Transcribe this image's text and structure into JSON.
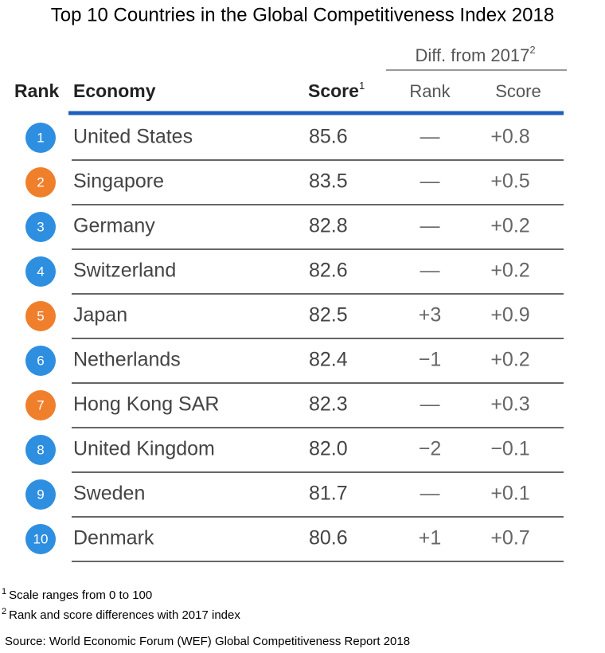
{
  "title": "Top 10 Countries in the Global Competitiveness Index 2018",
  "table": {
    "group_header": {
      "text": "Diff. from 2017",
      "note": "2"
    },
    "headers": [
      {
        "text": "Rank"
      },
      {
        "text": "Economy"
      },
      {
        "text": "Score",
        "note": "1"
      },
      {
        "text": "Rank"
      },
      {
        "text": "Score"
      }
    ],
    "rows": [
      {
        "rank": "1",
        "economy": "United States",
        "score": "85.6",
        "rank_diff": "—",
        "score_diff": "+0.8",
        "color": "#2e8fe0"
      },
      {
        "rank": "2",
        "economy": "Singapore",
        "score": "83.5",
        "rank_diff": "—",
        "score_diff": "+0.5",
        "color": "#f07f2c"
      },
      {
        "rank": "3",
        "economy": "Germany",
        "score": "82.8",
        "rank_diff": "—",
        "score_diff": "+0.2",
        "color": "#2e8fe0"
      },
      {
        "rank": "4",
        "economy": "Switzerland",
        "score": "82.6",
        "rank_diff": "—",
        "score_diff": "+0.2",
        "color": "#2e8fe0"
      },
      {
        "rank": "5",
        "economy": "Japan",
        "score": "82.5",
        "rank_diff": "+3",
        "score_diff": "+0.9",
        "color": "#f07f2c"
      },
      {
        "rank": "6",
        "economy": "Netherlands",
        "score": "82.4",
        "rank_diff": "−1",
        "score_diff": "+0.2",
        "color": "#2e8fe0"
      },
      {
        "rank": "7",
        "economy": "Hong Kong SAR",
        "score": "82.3",
        "rank_diff": "—",
        "score_diff": "+0.3",
        "color": "#f07f2c"
      },
      {
        "rank": "8",
        "economy": "United Kingdom",
        "score": "82.0",
        "rank_diff": "−2",
        "score_diff": "−0.1",
        "color": "#2e8fe0"
      },
      {
        "rank": "9",
        "economy": "Sweden",
        "score": "81.7",
        "rank_diff": "—",
        "score_diff": "+0.1",
        "color": "#2e8fe0"
      },
      {
        "rank": "10",
        "economy": "Denmark",
        "score": "80.6",
        "rank_diff": "+1",
        "score_diff": "+0.7",
        "color": "#2e8fe0"
      }
    ]
  },
  "footnotes": [
    {
      "mark": "1",
      "text": "Scale ranges from 0 to 100"
    },
    {
      "mark": "2",
      "text": "Rank and score differences with 2017 index"
    }
  ],
  "source": "Source: World Economic Forum (WEF) Global Competitiveness Report 2018"
}
